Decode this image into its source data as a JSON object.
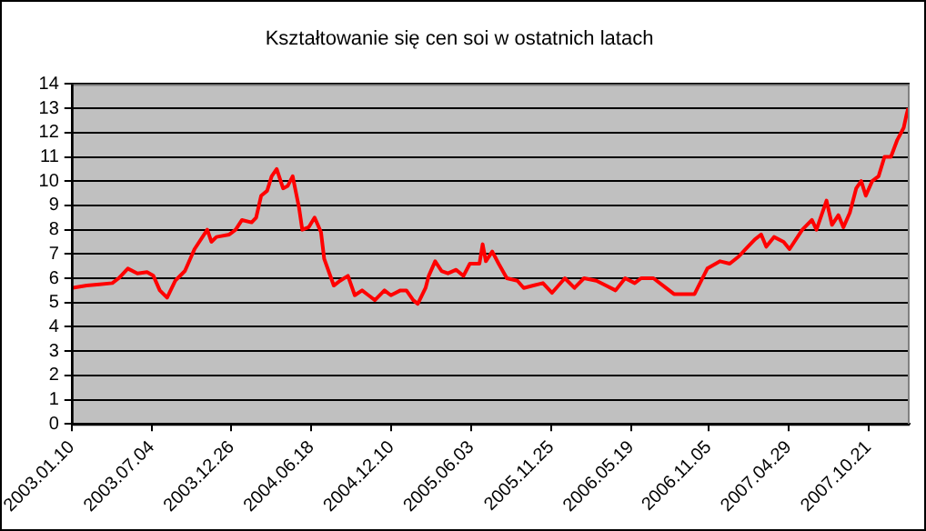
{
  "chart_data": {
    "type": "line",
    "title": "Kształtowanie się cen soi w ostatnich latach",
    "x": [
      "2003-01-10",
      "2003-02-12",
      "2003-03-12",
      "2003-04-09",
      "2003-04-23",
      "2003-05-13",
      "2003-06-03",
      "2003-06-24",
      "2003-07-08",
      "2003-07-22",
      "2003-08-07",
      "2003-08-25",
      "2003-09-15",
      "2003-10-06",
      "2003-11-03",
      "2003-11-12",
      "2003-11-23",
      "2003-12-21",
      "2004-01-04",
      "2004-01-18",
      "2004-02-08",
      "2004-02-18",
      "2004-02-29",
      "2004-03-13",
      "2004-03-23",
      "2004-04-03",
      "2004-04-17",
      "2004-04-27",
      "2004-05-08",
      "2004-05-22",
      "2004-05-29",
      "2004-06-12",
      "2004-06-25",
      "2004-07-09",
      "2004-07-16",
      "2004-08-06",
      "2004-08-20",
      "2004-09-06",
      "2004-09-21",
      "2004-10-07",
      "2004-10-21",
      "2004-11-04",
      "2004-11-25",
      "2004-12-09",
      "2004-12-30",
      "2005-01-12",
      "2005-01-27",
      "2005-02-06",
      "2005-02-23",
      "2005-03-02",
      "2005-03-16",
      "2005-03-30",
      "2005-04-13",
      "2005-05-01",
      "2005-05-17",
      "2005-05-31",
      "2005-06-21",
      "2005-06-28",
      "2005-07-05",
      "2005-07-19",
      "2005-08-02",
      "2005-08-20",
      "2005-09-12",
      "2005-09-26",
      "2005-10-17",
      "2005-11-07",
      "2005-11-27",
      "2005-12-25",
      "2006-01-15",
      "2006-02-05",
      "2006-03-04",
      "2006-03-25",
      "2006-04-15",
      "2006-05-06",
      "2006-05-27",
      "2006-06-10",
      "2006-07-07",
      "2006-07-28",
      "2006-08-21",
      "2006-10-05",
      "2006-11-02",
      "2006-11-30",
      "2006-12-21",
      "2007-01-10",
      "2007-01-25",
      "2007-02-14",
      "2007-02-28",
      "2007-03-11",
      "2007-03-28",
      "2007-04-18",
      "2007-05-01",
      "2007-05-29",
      "2007-06-19",
      "2007-06-29",
      "2007-07-10",
      "2007-07-21",
      "2007-08-02",
      "2007-08-16",
      "2007-08-27",
      "2007-09-10",
      "2007-09-24",
      "2007-10-05",
      "2007-10-15",
      "2007-10-29",
      "2007-11-12",
      "2007-11-25",
      "2007-12-09",
      "2007-12-23",
      "2008-01-06",
      "2008-01-13",
      "2008-01-16"
    ],
    "series": [
      {
        "color": "#ff0000",
        "values": [
          5.6,
          5.7,
          5.75,
          5.8,
          6.0,
          6.4,
          6.2,
          6.25,
          6.1,
          5.5,
          5.2,
          5.9,
          6.3,
          7.2,
          8.0,
          7.5,
          7.7,
          7.8,
          8.0,
          8.4,
          8.3,
          8.5,
          9.4,
          9.6,
          10.2,
          10.5,
          9.7,
          9.8,
          10.2,
          8.9,
          8.0,
          8.1,
          8.5,
          7.9,
          6.8,
          5.7,
          5.9,
          6.1,
          5.3,
          5.5,
          5.3,
          5.1,
          5.5,
          5.3,
          5.5,
          5.5,
          5.1,
          4.95,
          5.6,
          6.1,
          6.7,
          6.3,
          6.2,
          6.35,
          6.1,
          6.6,
          6.6,
          7.4,
          6.7,
          7.1,
          6.6,
          6.0,
          5.9,
          5.6,
          5.7,
          5.8,
          5.4,
          6.0,
          5.6,
          6.0,
          5.9,
          5.7,
          5.5,
          6.0,
          5.8,
          6.0,
          6.0,
          5.7,
          5.35,
          5.35,
          6.4,
          6.7,
          6.6,
          6.9,
          7.2,
          7.6,
          7.8,
          7.3,
          7.7,
          7.5,
          7.2,
          8.0,
          8.4,
          8.0,
          8.6,
          9.2,
          8.2,
          8.6,
          8.1,
          8.7,
          9.7,
          10.0,
          9.4,
          10.0,
          10.2,
          11.0,
          11.0,
          11.7,
          12.2,
          12.8,
          13.0
        ]
      }
    ],
    "xlim": [
      "2003-01-10",
      "2008-01-19"
    ],
    "xticks": [
      {
        "value": "2003-01-10",
        "label": "2003.01.10"
      },
      {
        "value": "2003-07-04",
        "label": "2003.07.04"
      },
      {
        "value": "2003-12-26",
        "label": "2003.12.26"
      },
      {
        "value": "2004-06-18",
        "label": "2004.06.18"
      },
      {
        "value": "2004-12-10",
        "label": "2004.12.10"
      },
      {
        "value": "2005-06-03",
        "label": "2005.06.03"
      },
      {
        "value": "2005-11-25",
        "label": "2005.11.25"
      },
      {
        "value": "2006-05-19",
        "label": "2006.05.19"
      },
      {
        "value": "2006-11-05",
        "label": "2006.11.05"
      },
      {
        "value": "2007-04-29",
        "label": "2007.04.29"
      },
      {
        "value": "2007-10-21",
        "label": "2007.10.21"
      }
    ],
    "ylim": [
      0,
      14
    ],
    "yticks": [
      0,
      1,
      2,
      3,
      4,
      5,
      6,
      7,
      8,
      9,
      10,
      11,
      12,
      13,
      14
    ],
    "grid": "y",
    "legend": false,
    "marker": "none",
    "line_style": "solid"
  }
}
